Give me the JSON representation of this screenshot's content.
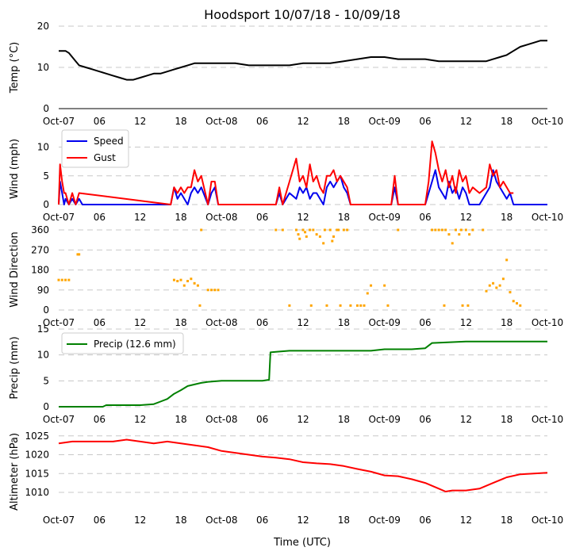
{
  "figure": {
    "title": "Hoodsport 10/07/18 - 10/09/18",
    "xlabel": "Time (UTC)"
  },
  "chart_data": [
    {
      "type": "line",
      "ylabel": "Temp (°C)",
      "ylim": [
        0,
        20
      ],
      "yticks": [
        0,
        10,
        20
      ],
      "xlim": [
        0,
        72
      ],
      "xtick_labels": [
        "Oct-07",
        "06",
        "12",
        "18",
        "Oct-08",
        "06",
        "12",
        "18",
        "Oct-09",
        "06",
        "12",
        "18",
        "Oct-10"
      ],
      "grid": true,
      "series": [
        {
          "name": "Temp",
          "color": "#000000",
          "x": [
            0,
            1,
            1.5,
            2,
            2.5,
            3,
            4,
            5,
            6,
            7,
            8,
            9,
            10,
            11,
            12,
            13,
            14,
            15,
            16,
            17,
            18,
            19,
            20,
            22,
            24,
            26,
            28,
            30,
            32,
            34,
            36,
            38,
            40,
            42,
            44,
            46,
            48,
            50,
            52,
            54,
            56,
            58,
            60,
            62,
            63,
            64,
            65,
            66,
            67,
            68,
            69,
            70,
            71,
            72
          ],
          "y": [
            14,
            14,
            13.5,
            12.5,
            11.5,
            10.5,
            10,
            9.5,
            9,
            8.5,
            8,
            7.5,
            7,
            7,
            7.5,
            8,
            8.5,
            8.5,
            9,
            9.5,
            10,
            10.5,
            11,
            11,
            11,
            11,
            10.5,
            10.5,
            10.5,
            10.5,
            11,
            11,
            11,
            11.5,
            12,
            12.5,
            12.5,
            12,
            12,
            12,
            11.5,
            11.5,
            11.5,
            11.5,
            11.5,
            12,
            12.5,
            13,
            14,
            15,
            15.5,
            16,
            16.5,
            16.5
          ]
        }
      ]
    },
    {
      "type": "line",
      "ylabel": "Wind (mph)",
      "ylim": [
        0,
        12
      ],
      "yticks": [
        0,
        5,
        10
      ],
      "xlim": [
        0,
        72
      ],
      "xtick_labels": [
        "Oct-07",
        "06",
        "12",
        "18",
        "Oct-08",
        "06",
        "12",
        "18",
        "Oct-09",
        "06",
        "12",
        "18",
        "Oct-10"
      ],
      "grid": true,
      "legend": "top-left",
      "series": [
        {
          "name": "Speed",
          "color": "#0000ee",
          "x": [
            0,
            0.2,
            0.5,
            0.8,
            1,
            1.5,
            2,
            2.5,
            3,
            3.5,
            4,
            16.5,
            17,
            17.5,
            18,
            18.5,
            19,
            19.5,
            20,
            20.5,
            21,
            22,
            22.5,
            23,
            23.5,
            24,
            32,
            32.5,
            33,
            34,
            35,
            35.5,
            36,
            36.5,
            37,
            37.5,
            38,
            38.5,
            39,
            39.5,
            40,
            40.5,
            41,
            41.5,
            42,
            42.5,
            43,
            49,
            49.5,
            50,
            54,
            54.5,
            55,
            55.5,
            56,
            56.5,
            57,
            57.5,
            58,
            58.5,
            59,
            59.5,
            60,
            60.5,
            61,
            62,
            63,
            63.5,
            64,
            64.5,
            65,
            65.5,
            66,
            66.5,
            67,
            72
          ],
          "y": [
            0,
            4,
            2,
            0,
            1,
            0,
            1,
            0,
            1,
            0,
            0,
            0,
            3,
            1,
            2,
            1,
            0,
            2,
            3,
            2,
            3,
            0,
            2,
            3,
            0,
            0,
            0,
            2,
            0,
            2,
            1,
            3,
            2,
            3,
            1,
            2,
            2,
            1,
            0,
            3,
            4,
            3,
            4,
            5,
            3,
            2,
            0,
            0,
            3,
            0,
            0,
            2,
            4,
            6,
            3,
            2,
            1,
            4,
            2,
            3,
            1,
            3,
            2,
            0,
            0,
            0,
            2,
            3,
            6,
            4,
            3,
            2,
            1,
            2,
            0,
            0
          ]
        },
        {
          "name": "Gust",
          "color": "#ff0000",
          "x": [
            0,
            0.2,
            0.5,
            0.8,
            1,
            1.5,
            2,
            2.5,
            3,
            16.5,
            17,
            17.5,
            18,
            18.5,
            19,
            19.5,
            20,
            20.5,
            21,
            22,
            22.5,
            23,
            23.5,
            32,
            32.5,
            33,
            34,
            35,
            35.5,
            36,
            36.5,
            37,
            37.5,
            38,
            38.5,
            39,
            39.5,
            40,
            40.5,
            41,
            41.5,
            42,
            42.5,
            43,
            49,
            49.5,
            50,
            54,
            54.5,
            55,
            55.5,
            56,
            56.5,
            57,
            57.5,
            58,
            58.5,
            59,
            59.5,
            60,
            60.5,
            61,
            62,
            63,
            63.5,
            64,
            64.5,
            65,
            65.5,
            66,
            66.5,
            67
          ],
          "y": [
            0,
            7,
            4,
            2,
            2,
            0,
            2,
            0,
            2,
            0,
            3,
            2,
            3,
            2,
            3,
            3,
            6,
            4,
            5,
            0,
            4,
            4,
            0,
            0,
            3,
            0,
            4,
            8,
            4,
            5,
            3,
            7,
            4,
            5,
            3,
            2,
            5,
            5,
            6,
            4,
            5,
            4,
            3,
            0,
            0,
            5,
            0,
            0,
            4,
            11,
            9,
            6,
            4,
            6,
            3,
            5,
            2,
            6,
            4,
            5,
            2,
            3,
            2,
            3,
            7,
            5,
            6,
            3,
            4,
            3,
            2,
            2
          ]
        }
      ]
    },
    {
      "type": "scatter",
      "ylabel": "Wind Direction",
      "ylim": [
        0,
        360
      ],
      "yticks": [
        0,
        90,
        180,
        270,
        360
      ],
      "xlim": [
        0,
        72
      ],
      "xtick_labels": [
        "Oct-07",
        "06",
        "12",
        "18",
        "Oct-08",
        "06",
        "12",
        "18",
        "Oct-09",
        "06",
        "12",
        "18",
        "Oct-10"
      ],
      "grid": true,
      "series": [
        {
          "name": "Direction",
          "color": "#ffa500",
          "x": [
            0,
            0.5,
            1,
            1.5,
            2.8,
            3,
            17,
            17.5,
            18,
            18.5,
            19,
            19.5,
            20,
            20.5,
            20.8,
            21,
            22,
            22.5,
            23,
            23.5,
            32,
            33,
            34,
            35,
            35.3,
            35.5,
            36,
            36.3,
            36.5,
            37,
            37.2,
            37.5,
            38,
            38.5,
            39,
            39.2,
            39.5,
            40,
            40.3,
            40.5,
            41,
            41.2,
            41.5,
            42,
            42.5,
            43,
            44,
            44.5,
            45,
            45.5,
            46,
            48,
            48.5,
            50,
            55,
            55.5,
            56,
            56.5,
            56.8,
            57,
            57.5,
            58,
            58.5,
            59,
            59.3,
            59.5,
            60,
            60.3,
            60.5,
            61,
            62.5,
            63,
            63.5,
            64,
            64.5,
            65,
            65.5,
            66,
            66.5,
            67,
            67.5,
            68
          ],
          "y": [
            135,
            135,
            135,
            135,
            250,
            250,
            135,
            130,
            135,
            110,
            130,
            140,
            120,
            110,
            20,
            360,
            90,
            90,
            90,
            90,
            360,
            360,
            20,
            360,
            340,
            320,
            360,
            350,
            330,
            360,
            20,
            360,
            340,
            330,
            300,
            360,
            20,
            360,
            310,
            330,
            360,
            360,
            20,
            360,
            360,
            20,
            20,
            20,
            20,
            75,
            110,
            110,
            20,
            360,
            360,
            360,
            360,
            360,
            20,
            360,
            340,
            300,
            360,
            340,
            360,
            20,
            360,
            20,
            340,
            360,
            360,
            85,
            110,
            120,
            100,
            110,
            140,
            225,
            80,
            40,
            30,
            20
          ]
        }
      ]
    },
    {
      "type": "line",
      "ylabel": "Precip (mm)",
      "ylim": [
        0,
        15
      ],
      "yticks": [
        0,
        5,
        10,
        15
      ],
      "xlim": [
        0,
        72
      ],
      "xtick_labels": [
        "Oct-07",
        "06",
        "12",
        "18",
        "Oct-08",
        "06",
        "12",
        "18",
        "Oct-09",
        "06",
        "12",
        "18",
        "Oct-10"
      ],
      "grid": true,
      "legend": "top-left",
      "series": [
        {
          "name": "Precip (12.6 mm)",
          "color": "#008000",
          "x": [
            0,
            6.5,
            7,
            12,
            14,
            15,
            16,
            17,
            18,
            19,
            20,
            21,
            22,
            24,
            26,
            28,
            30,
            31,
            31.2,
            32,
            34,
            36,
            40,
            44,
            46,
            48,
            49,
            52,
            54,
            55,
            60,
            72
          ],
          "y": [
            0,
            0,
            0.3,
            0.3,
            0.5,
            1,
            1.5,
            2.5,
            3.2,
            4,
            4.3,
            4.6,
            4.8,
            5,
            5,
            5,
            5,
            5.2,
            10.5,
            10.6,
            10.8,
            10.8,
            10.8,
            10.8,
            10.8,
            11.1,
            11.1,
            11.1,
            11.3,
            12.3,
            12.6,
            12.6
          ]
        }
      ]
    },
    {
      "type": "line",
      "ylabel": "Altimeter (hPa)",
      "ylim": [
        1006,
        1026
      ],
      "yticks": [
        1010,
        1015,
        1020,
        1025
      ],
      "xlim": [
        0,
        72
      ],
      "xtick_labels": [
        "Oct-07",
        "06",
        "12",
        "18",
        "Oct-08",
        "06",
        "12",
        "18",
        "Oct-09",
        "06",
        "12",
        "18",
        "Oct-10"
      ],
      "grid": true,
      "series": [
        {
          "name": "Altimeter",
          "color": "#ff0000",
          "x": [
            0,
            2,
            4,
            6,
            8,
            10,
            12,
            14,
            16,
            18,
            20,
            22,
            24,
            26,
            28,
            30,
            32,
            34,
            36,
            38,
            40,
            42,
            44,
            46,
            48,
            50,
            52,
            54,
            56,
            57,
            58,
            60,
            62,
            64,
            66,
            68,
            70,
            72
          ],
          "y": [
            1023,
            1023.5,
            1023.5,
            1023.5,
            1023.5,
            1024,
            1023.5,
            1023,
            1023.5,
            1023,
            1022.5,
            1022,
            1021,
            1020.5,
            1020,
            1019.5,
            1019.2,
            1018.8,
            1018,
            1017.7,
            1017.5,
            1017,
            1016.2,
            1015.5,
            1014.5,
            1014.3,
            1013.5,
            1012.5,
            1011,
            1010.2,
            1010.5,
            1010.5,
            1011,
            1012.5,
            1014,
            1014.8,
            1015,
            1015.2
          ]
        }
      ]
    }
  ]
}
